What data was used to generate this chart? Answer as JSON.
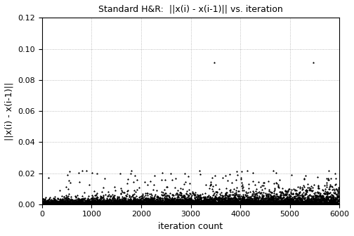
{
  "title": "Standard H&R:  ||x(i) - x(i-1)|| vs. iteration",
  "xlabel": "iteration count",
  "ylabel": "||x(i) - x(i-1)||",
  "xlim": [
    0,
    6000
  ],
  "ylim": [
    0,
    0.12
  ],
  "xticks": [
    0,
    1000,
    2000,
    3000,
    4000,
    5000,
    6000
  ],
  "yticks": [
    0,
    0.02,
    0.04,
    0.06,
    0.08,
    0.1,
    0.12
  ],
  "marker": "*",
  "marker_color": "black",
  "marker_size": 1.5,
  "n_points": 6000,
  "seed": 42,
  "background_color": "white",
  "grid_color": "#aaaaaa",
  "title_fontsize": 9,
  "label_fontsize": 9,
  "tick_fontsize": 8
}
